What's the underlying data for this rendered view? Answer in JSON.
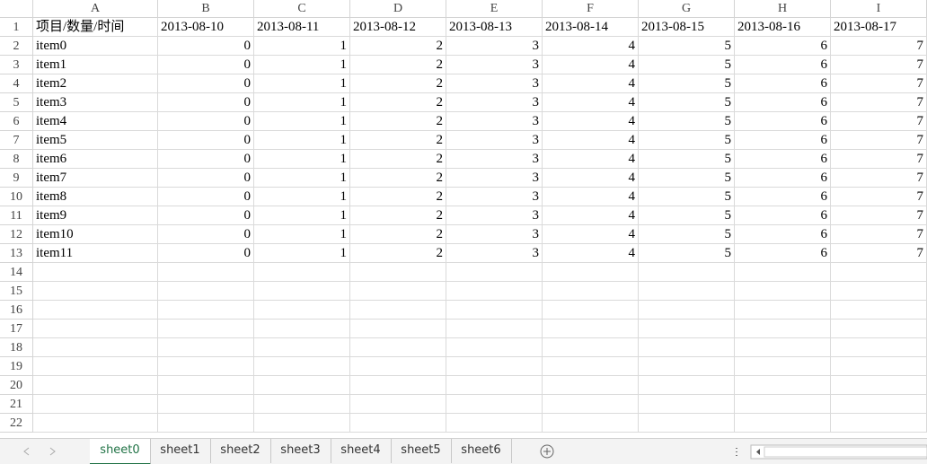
{
  "columns": [
    "A",
    "B",
    "C",
    "D",
    "E",
    "F",
    "G",
    "H",
    "I"
  ],
  "row_numbers": [
    1,
    2,
    3,
    4,
    5,
    6,
    7,
    8,
    9,
    10,
    11,
    12,
    13,
    14,
    15,
    16,
    17,
    18,
    19,
    20,
    21,
    22
  ],
  "table": {
    "header": [
      "项目/数量/时间",
      "2013-08-10",
      "2013-08-11",
      "2013-08-12",
      "2013-08-13",
      "2013-08-14",
      "2013-08-15",
      "2013-08-16",
      "2013-08-17"
    ],
    "rows": [
      [
        "item0",
        0,
        1,
        2,
        3,
        4,
        5,
        6,
        7
      ],
      [
        "item1",
        0,
        1,
        2,
        3,
        4,
        5,
        6,
        7
      ],
      [
        "item2",
        0,
        1,
        2,
        3,
        4,
        5,
        6,
        7
      ],
      [
        "item3",
        0,
        1,
        2,
        3,
        4,
        5,
        6,
        7
      ],
      [
        "item4",
        0,
        1,
        2,
        3,
        4,
        5,
        6,
        7
      ],
      [
        "item5",
        0,
        1,
        2,
        3,
        4,
        5,
        6,
        7
      ],
      [
        "item6",
        0,
        1,
        2,
        3,
        4,
        5,
        6,
        7
      ],
      [
        "item7",
        0,
        1,
        2,
        3,
        4,
        5,
        6,
        7
      ],
      [
        "item8",
        0,
        1,
        2,
        3,
        4,
        5,
        6,
        7
      ],
      [
        "item9",
        0,
        1,
        2,
        3,
        4,
        5,
        6,
        7
      ],
      [
        "item10",
        0,
        1,
        2,
        3,
        4,
        5,
        6,
        7
      ],
      [
        "item11",
        0,
        1,
        2,
        3,
        4,
        5,
        6,
        7
      ]
    ]
  },
  "sheets": [
    "sheet0",
    "sheet1",
    "sheet2",
    "sheet3",
    "sheet4",
    "sheet5",
    "sheet6"
  ]
}
